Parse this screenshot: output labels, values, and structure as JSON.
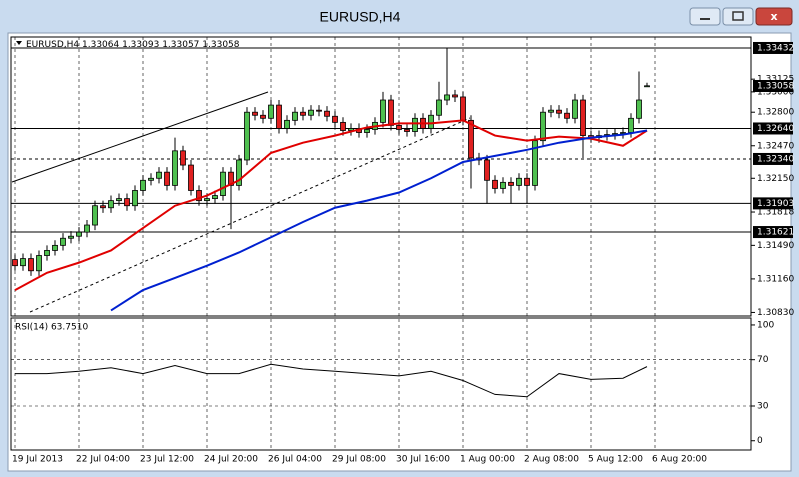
{
  "window_title": "EURUSD,H4",
  "chart_data": [
    {
      "type": "candlestick",
      "symbol": "EURUSD,H4",
      "quote": [
        1.33064,
        1.33093,
        1.33057,
        1.33058
      ],
      "up_color": "#4fc04f",
      "down_color": "#e02020",
      "open": [
        1.3135,
        1.3129,
        1.3136,
        1.3124,
        1.3139,
        1.3144,
        1.3149,
        1.3156,
        1.3158,
        1.3162,
        1.3169,
        1.3188,
        1.3186,
        1.3193,
        1.3195,
        1.3188,
        1.3203,
        1.3213,
        1.3215,
        1.3221,
        1.3208,
        1.3242,
        1.3228,
        1.3203,
        1.3193,
        1.3195,
        1.3198,
        1.3221,
        1.3208,
        1.3233,
        1.328,
        1.3277,
        1.3274,
        1.3287,
        1.3264,
        1.3272,
        1.328,
        1.3277,
        1.3282,
        1.3281,
        1.3276,
        1.327,
        1.3262,
        1.3264,
        1.326,
        1.3263,
        1.327,
        1.3292,
        1.3267,
        1.3263,
        1.3261,
        1.3274,
        1.3264,
        1.3277,
        1.3292,
        1.3297,
        1.3295,
        1.3272,
        1.3235,
        1.3233,
        1.3213,
        1.3205,
        1.3211,
        1.3208,
        1.3215,
        1.3208,
        1.3252,
        1.328,
        1.3282,
        1.3279,
        1.3274,
        1.3292,
        1.3257,
        1.3255,
        1.3257,
        1.3258,
        1.3259,
        1.326,
        1.3274,
        1.3306
      ],
      "high": [
        1.314,
        1.3141,
        1.3141,
        1.3144,
        1.3149,
        1.3154,
        1.3161,
        1.3163,
        1.3167,
        1.3174,
        1.3193,
        1.3193,
        1.3198,
        1.32,
        1.32,
        1.3208,
        1.3218,
        1.322,
        1.3226,
        1.3226,
        1.3255,
        1.3247,
        1.3233,
        1.3208,
        1.32,
        1.3203,
        1.3226,
        1.3226,
        1.3238,
        1.3285,
        1.3285,
        1.3282,
        1.3292,
        1.3292,
        1.3277,
        1.3285,
        1.3285,
        1.3287,
        1.3287,
        1.3286,
        1.3281,
        1.3275,
        1.3269,
        1.3269,
        1.3268,
        1.3275,
        1.33,
        1.3297,
        1.3272,
        1.3268,
        1.3279,
        1.3279,
        1.3282,
        1.331,
        1.3343,
        1.3302,
        1.33,
        1.3277,
        1.324,
        1.3238,
        1.3218,
        1.3216,
        1.3216,
        1.322,
        1.322,
        1.3257,
        1.3285,
        1.3287,
        1.3287,
        1.3284,
        1.3298,
        1.3297,
        1.3262,
        1.3262,
        1.3263,
        1.3264,
        1.3265,
        1.3279,
        1.332,
        1.3309
      ],
      "low": [
        1.3124,
        1.3124,
        1.3119,
        1.3119,
        1.3134,
        1.3139,
        1.3144,
        1.3151,
        1.3153,
        1.3157,
        1.3164,
        1.3181,
        1.3181,
        1.3188,
        1.3183,
        1.3183,
        1.3198,
        1.3208,
        1.321,
        1.3203,
        1.3203,
        1.3223,
        1.3198,
        1.3188,
        1.3188,
        1.319,
        1.3193,
        1.3165,
        1.3203,
        1.3228,
        1.3272,
        1.3269,
        1.3269,
        1.3259,
        1.3259,
        1.3267,
        1.3272,
        1.3272,
        1.3276,
        1.3271,
        1.3265,
        1.3257,
        1.3257,
        1.3255,
        1.3255,
        1.3258,
        1.3265,
        1.3262,
        1.3258,
        1.3256,
        1.3256,
        1.3259,
        1.3259,
        1.3272,
        1.3287,
        1.329,
        1.3267,
        1.3205,
        1.3228,
        1.319,
        1.32,
        1.32,
        1.319,
        1.3203,
        1.319,
        1.3203,
        1.3247,
        1.3275,
        1.3274,
        1.3269,
        1.3269,
        1.3235,
        1.325,
        1.325,
        1.3252,
        1.3253,
        1.3254,
        1.3255,
        1.3269,
        1.3306
      ],
      "close": [
        1.3129,
        1.3136,
        1.3124,
        1.3139,
        1.3144,
        1.3149,
        1.3156,
        1.3158,
        1.3162,
        1.3169,
        1.3188,
        1.3186,
        1.3193,
        1.3195,
        1.3188,
        1.3203,
        1.3213,
        1.3215,
        1.3221,
        1.3208,
        1.3242,
        1.3228,
        1.3203,
        1.3193,
        1.3195,
        1.3198,
        1.3221,
        1.3208,
        1.3233,
        1.328,
        1.3277,
        1.3274,
        1.3287,
        1.3264,
        1.3272,
        1.328,
        1.3277,
        1.3282,
        1.3281,
        1.3276,
        1.327,
        1.3262,
        1.3264,
        1.326,
        1.3263,
        1.327,
        1.3292,
        1.3267,
        1.3263,
        1.3261,
        1.3274,
        1.3264,
        1.3277,
        1.3292,
        1.3297,
        1.3295,
        1.3272,
        1.3235,
        1.3233,
        1.3213,
        1.3205,
        1.3211,
        1.3208,
        1.3215,
        1.3208,
        1.3252,
        1.328,
        1.3282,
        1.3279,
        1.3274,
        1.3292,
        1.3257,
        1.3255,
        1.3257,
        1.3258,
        1.3259,
        1.326,
        1.3274,
        1.3292,
        1.3306
      ],
      "series": [
        {
          "color": "#e00000",
          "x": [
            0,
            4,
            8,
            12,
            16,
            20,
            24,
            28,
            32,
            36,
            40,
            44,
            48,
            52,
            56,
            60,
            64,
            68,
            72,
            76,
            79
          ],
          "values": [
            1.3105,
            1.3122,
            1.3132,
            1.3144,
            1.3166,
            1.3188,
            1.3198,
            1.3213,
            1.324,
            1.325,
            1.3257,
            1.3265,
            1.3269,
            1.3269,
            1.3272,
            1.3257,
            1.3252,
            1.3256,
            1.3254,
            1.3247,
            1.3262
          ]
        },
        {
          "color": "#0020d0",
          "x": [
            12,
            16,
            20,
            24,
            28,
            32,
            36,
            40,
            44,
            48,
            52,
            56,
            60,
            64,
            68,
            72,
            76,
            79
          ],
          "values": [
            1.3085,
            1.3105,
            1.3117,
            1.3129,
            1.3142,
            1.3157,
            1.3172,
            1.3186,
            1.3193,
            1.3201,
            1.3215,
            1.3231,
            1.3237,
            1.3243,
            1.325,
            1.3255,
            1.3258,
            1.3262
          ]
        }
      ],
      "ylim": [
        1.30795,
        1.3354
      ],
      "yticks": [
        1.33125,
        {
          "value": 1.33,
          "label": "1.33000"
        },
        {
          "value": 1.328,
          "label": "1.32800"
        },
        {
          "value": 1.3247,
          "label": "1.32470"
        },
        {
          "value": 1.3215,
          "label": "1.32150"
        },
        1.31818,
        {
          "value": 1.3149,
          "label": "1.31490"
        },
        {
          "value": 1.3116,
          "label": "1.31160"
        },
        {
          "value": 1.3083,
          "label": "1.30830"
        }
      ],
      "levels": [
        {
          "value": 1.33432,
          "style": "solid"
        },
        {
          "value": 1.3264,
          "label": "1.32640",
          "style": "solid"
        },
        {
          "value": 1.3234,
          "label": "1.32340",
          "style": "dashed"
        },
        {
          "value": 1.31903,
          "style": "solid"
        },
        {
          "value": 1.31621,
          "style": "solid"
        }
      ],
      "current": 1.33058,
      "xticks": [
        {
          "value": 0,
          "label": "19 Jul 2013"
        },
        {
          "value": 8,
          "label": "22 Jul 04:00"
        },
        {
          "value": 16,
          "label": "23 Jul 12:00"
        },
        {
          "value": 24,
          "label": "24 Jul 20:00"
        },
        {
          "value": 32,
          "label": "26 Jul 04:00"
        },
        {
          "value": 40,
          "label": "29 Jul 08:00"
        },
        {
          "value": 48,
          "label": "30 Jul 16:00"
        },
        {
          "value": 56,
          "label": "1 Aug 00:00"
        },
        {
          "value": 64,
          "label": "2 Aug 08:00"
        },
        {
          "value": 72,
          "label": "5 Aug 12:00"
        },
        {
          "value": 80,
          "label": "6 Aug 20:00"
        }
      ]
    },
    {
      "type": "line",
      "title": "RSI(14) 63.7510",
      "color": "#000000",
      "x": [
        0,
        4,
        8,
        12,
        16,
        20,
        24,
        28,
        32,
        36,
        40,
        44,
        48,
        52,
        56,
        60,
        64,
        68,
        72,
        76,
        79
      ],
      "values": [
        58,
        58,
        60,
        63,
        58,
        65,
        58,
        58,
        66,
        62,
        60,
        58,
        56,
        60,
        52,
        40,
        38,
        58,
        53,
        54,
        64
      ],
      "ylim": [
        -8,
        106
      ],
      "yticks": [
        100,
        70,
        30,
        0
      ],
      "levels": [
        70,
        30
      ]
    }
  ]
}
